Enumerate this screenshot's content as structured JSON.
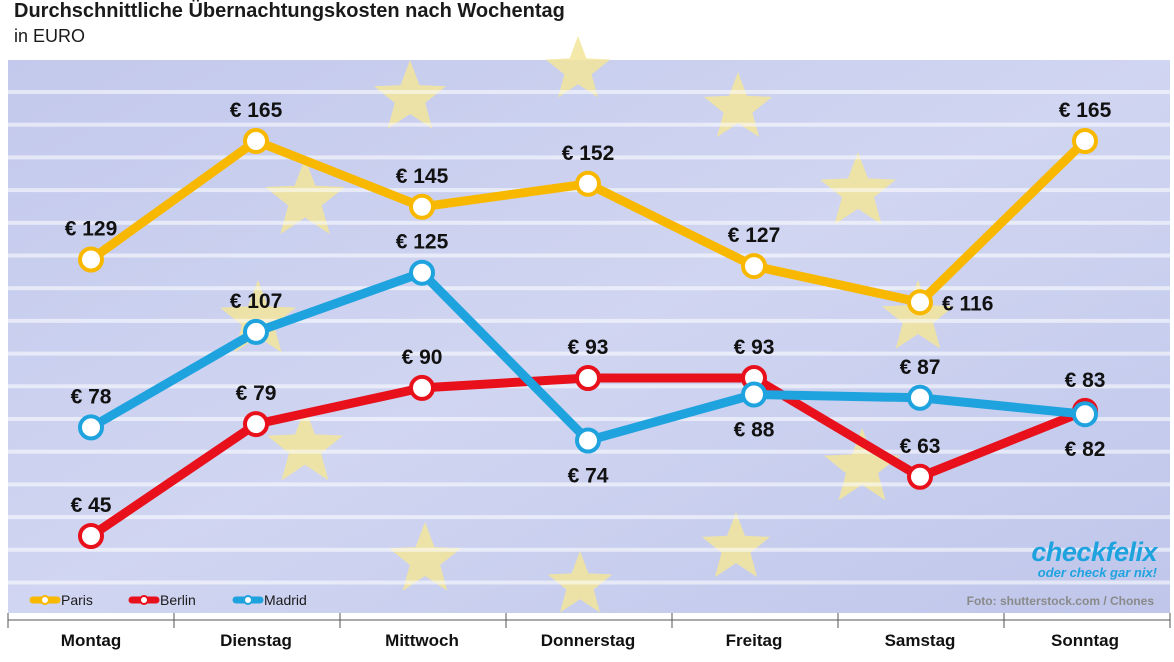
{
  "title": "Durchschnittliche Übernachtungskosten nach Wochentag",
  "subtitle": "in EURO",
  "photo_credit": "Foto: shutterstock.com / Chones",
  "brand": {
    "name": "checkfelix",
    "slogan": "oder check gar nix!"
  },
  "colors": {
    "Paris": "#f9b800",
    "Berlin": "#e8101b",
    "Madrid": "#1fa3df",
    "background": "#c7cdee",
    "stars": "#f2e59a"
  },
  "chart_data": {
    "type": "line",
    "title": "Durchschnittliche Übernachtungskosten nach Wochentag",
    "ylabel": "in EURO",
    "categories": [
      "Montag",
      "Dienstag",
      "Mittwoch",
      "Donnerstag",
      "Freitag",
      "Samstag",
      "Sonntag"
    ],
    "series": [
      {
        "name": "Paris",
        "values": [
          129,
          165,
          145,
          152,
          127,
          116,
          165
        ],
        "labels": [
          "€ 129",
          "€ 165",
          "€ 145",
          "€ 152",
          "€ 127",
          "€ 116",
          "€ 165"
        ],
        "label_pos": [
          "above",
          "above",
          "above",
          "above",
          "above",
          "right",
          "above"
        ]
      },
      {
        "name": "Berlin",
        "values": [
          45,
          79,
          90,
          93,
          93,
          63,
          83
        ],
        "labels": [
          "€ 45",
          "€ 79",
          "€ 90",
          "€ 93",
          "€ 93",
          "€ 63",
          "€ 83"
        ],
        "label_pos": [
          "above",
          "above",
          "above",
          "above",
          "above",
          "above",
          "above"
        ]
      },
      {
        "name": "Madrid",
        "values": [
          78,
          107,
          125,
          74,
          88,
          87,
          82
        ],
        "labels": [
          "€ 78",
          "€ 107",
          "€ 125",
          "€ 74",
          "€ 88",
          "€ 87",
          "€ 82"
        ],
        "label_pos": [
          "above",
          "above",
          "above",
          "below",
          "below",
          "above",
          "below"
        ]
      }
    ],
    "legend_position": "bottom-left",
    "grid": true
  }
}
